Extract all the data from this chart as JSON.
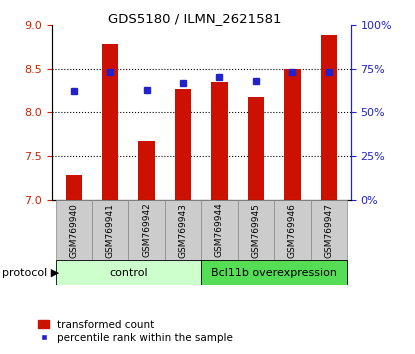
{
  "title": "GDS5180 / ILMN_2621581",
  "samples": [
    "GSM769940",
    "GSM769941",
    "GSM769942",
    "GSM769943",
    "GSM769944",
    "GSM769945",
    "GSM769946",
    "GSM769947"
  ],
  "transformed_counts": [
    7.28,
    8.78,
    7.67,
    8.27,
    8.35,
    8.18,
    8.5,
    8.88
  ],
  "percentile_ranks": [
    62,
    73,
    63,
    67,
    70,
    68,
    73,
    73
  ],
  "ylim_left": [
    7.0,
    9.0
  ],
  "ylim_right": [
    0,
    100
  ],
  "yticks_left": [
    7.0,
    7.5,
    8.0,
    8.5,
    9.0
  ],
  "yticks_right": [
    0,
    25,
    50,
    75,
    100
  ],
  "ytick_labels_right": [
    "0%",
    "25%",
    "50%",
    "75%",
    "100%"
  ],
  "bar_color": "#cc1100",
  "dot_color": "#2222cc",
  "bar_bottom": 7.0,
  "control_label": "control",
  "overexp_label": "Bcl11b overexpression",
  "control_color": "#ccffcc",
  "overexp_color": "#55dd55",
  "protocol_label": "protocol",
  "legend_bar_label": "transformed count",
  "legend_dot_label": "percentile rank within the sample",
  "bar_width": 0.45,
  "label_bg": "#cccccc"
}
